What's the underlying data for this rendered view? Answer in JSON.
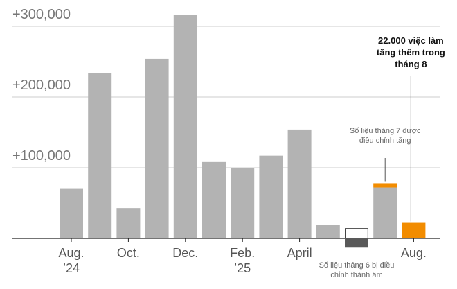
{
  "chart_data": {
    "type": "bar",
    "categories": [
      "Aug.\n’24",
      null,
      "Oct.",
      null,
      "Dec.",
      null,
      "Feb.\n’25",
      null,
      "April",
      null,
      null,
      null,
      "Aug."
    ],
    "series": [
      {
        "color": "#b3b3b3",
        "values": [
          71000,
          234000,
          43000,
          254000,
          316000,
          108000,
          100000,
          117000,
          154000,
          19000,
          null,
          72000,
          null
        ]
      },
      {
        "color": "#ffffff",
        "values": [
          null,
          null,
          null,
          null,
          null,
          null,
          null,
          null,
          null,
          null,
          14000,
          null,
          null
        ]
      },
      {
        "color": "#595959",
        "values": [
          null,
          null,
          null,
          null,
          null,
          null,
          null,
          null,
          null,
          null,
          -13000,
          null,
          null
        ]
      },
      {
        "color": "#f28c00",
        "values": [
          null,
          null,
          null,
          null,
          null,
          null,
          null,
          null,
          null,
          null,
          null,
          6000,
          22000
        ]
      }
    ],
    "ylim": [
      -40000,
      330000
    ],
    "yticks": [
      {
        "value": 100000,
        "label": "+100,000"
      },
      {
        "value": 200000,
        "label": "+200,000"
      },
      {
        "value": 300000,
        "label": "+300,000"
      }
    ],
    "grid": true,
    "annotations": [
      "22.000 việc làm tăng thêm trong tháng 8",
      "Số liệu tháng 7 được điều chỉnh tăng",
      "Số liệu tháng 6 bị điều chỉnh thành âm"
    ]
  }
}
